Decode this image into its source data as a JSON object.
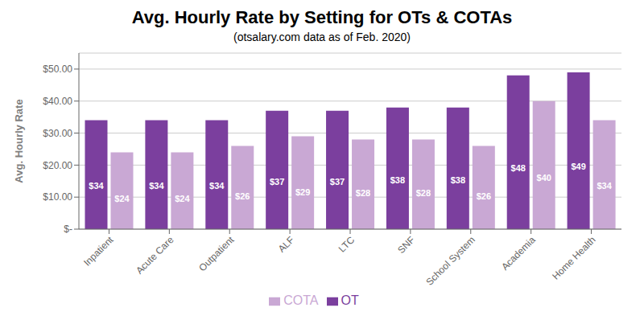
{
  "chart_data": {
    "type": "bar",
    "title": "Avg. Hourly Rate by Setting for OTs & COTAs",
    "subtitle": "(otsalary.com data as of Feb. 2020)",
    "ylabel": "Avg. Hourly Rate",
    "categories": [
      "Inpatient",
      "Acute Care",
      "Outpatient",
      "ALF",
      "LTC",
      "SNF",
      "School System",
      "Academia",
      "Home Health"
    ],
    "series": [
      {
        "name": "OT",
        "color": "#7B3F9E",
        "values": [
          34,
          34,
          34,
          37,
          37,
          38,
          38,
          48,
          49
        ],
        "value_labels": [
          "$34",
          "$34",
          "$34",
          "$37",
          "$37",
          "$38",
          "$38",
          "$48",
          "$49"
        ]
      },
      {
        "name": "COTA",
        "color": "#C9A8D4",
        "values": [
          24,
          24,
          26,
          29,
          28,
          28,
          26,
          40,
          34
        ],
        "value_labels": [
          "$24",
          "$24",
          "$26",
          "$29",
          "$28",
          "$28",
          "$26",
          "$40",
          "$34"
        ]
      }
    ],
    "ylim": [
      0,
      55
    ],
    "yticks": [
      {
        "value": 0,
        "label": "$-"
      },
      {
        "value": 10,
        "label": "$10.00"
      },
      {
        "value": 20,
        "label": "$20.00"
      },
      {
        "value": 30,
        "label": "$30.00"
      },
      {
        "value": 40,
        "label": "$40.00"
      },
      {
        "value": 50,
        "label": "$50.00"
      }
    ],
    "grid": true,
    "legend": "bottom",
    "data_labels": true
  }
}
